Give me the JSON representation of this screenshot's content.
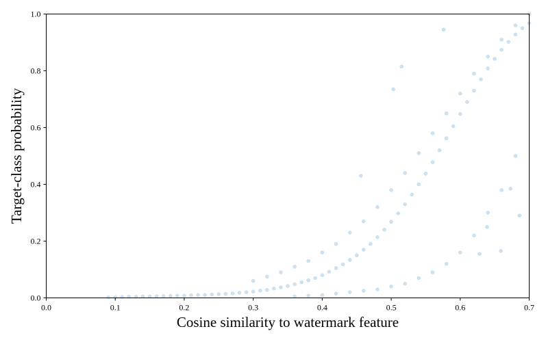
{
  "chart_data": {
    "type": "scatter",
    "title": "",
    "xlabel": "Cosine similarity to watermark feature",
    "ylabel": "Target-class probability",
    "xlim": [
      0.0,
      0.7
    ],
    "ylim": [
      0.0,
      1.0
    ],
    "xticks": [
      0.0,
      0.1,
      0.2,
      0.3,
      0.4,
      0.5,
      0.6,
      0.7
    ],
    "yticks": [
      0.0,
      0.2,
      0.4,
      0.6,
      0.8,
      1.0
    ],
    "xtick_labels": [
      "0.0",
      "0.1",
      "0.2",
      "0.3",
      "0.4",
      "0.5",
      "0.6",
      "0.7"
    ],
    "ytick_labels": [
      "0.0",
      "0.2",
      "0.4",
      "0.6",
      "0.8",
      "1.0"
    ],
    "grid": false,
    "legend": "none",
    "marker_color": "#1f77b4",
    "marker_alpha": 0.22,
    "series": [
      {
        "points": [
          [
            0.09,
            0.002
          ],
          [
            0.1,
            0.003
          ],
          [
            0.11,
            0.003
          ],
          [
            0.12,
            0.004
          ],
          [
            0.13,
            0.004
          ],
          [
            0.14,
            0.005
          ],
          [
            0.15,
            0.005
          ],
          [
            0.16,
            0.006
          ],
          [
            0.17,
            0.006
          ],
          [
            0.18,
            0.007
          ],
          [
            0.19,
            0.008
          ],
          [
            0.2,
            0.008
          ],
          [
            0.21,
            0.009
          ],
          [
            0.22,
            0.01
          ],
          [
            0.23,
            0.01
          ],
          [
            0.24,
            0.012
          ],
          [
            0.25,
            0.013
          ],
          [
            0.26,
            0.014
          ],
          [
            0.27,
            0.016
          ],
          [
            0.28,
            0.018
          ],
          [
            0.29,
            0.02
          ],
          [
            0.3,
            0.022
          ],
          [
            0.31,
            0.026
          ],
          [
            0.32,
            0.028
          ],
          [
            0.33,
            0.033
          ],
          [
            0.34,
            0.037
          ],
          [
            0.35,
            0.042
          ],
          [
            0.36,
            0.048
          ],
          [
            0.37,
            0.055
          ],
          [
            0.38,
            0.062
          ],
          [
            0.39,
            0.07
          ],
          [
            0.4,
            0.08
          ],
          [
            0.41,
            0.092
          ],
          [
            0.42,
            0.105
          ],
          [
            0.43,
            0.118
          ],
          [
            0.44,
            0.134
          ],
          [
            0.45,
            0.15
          ],
          [
            0.46,
            0.17
          ],
          [
            0.47,
            0.19
          ],
          [
            0.48,
            0.214
          ],
          [
            0.49,
            0.24
          ],
          [
            0.5,
            0.268
          ],
          [
            0.51,
            0.298
          ],
          [
            0.52,
            0.33
          ],
          [
            0.53,
            0.364
          ],
          [
            0.54,
            0.4
          ],
          [
            0.55,
            0.438
          ],
          [
            0.56,
            0.478
          ],
          [
            0.57,
            0.52
          ],
          [
            0.58,
            0.562
          ],
          [
            0.59,
            0.605
          ],
          [
            0.6,
            0.648
          ],
          [
            0.61,
            0.69
          ],
          [
            0.62,
            0.73
          ],
          [
            0.63,
            0.77
          ],
          [
            0.64,
            0.808
          ],
          [
            0.65,
            0.842
          ],
          [
            0.66,
            0.874
          ],
          [
            0.67,
            0.902
          ],
          [
            0.68,
            0.928
          ],
          [
            0.69,
            0.95
          ],
          [
            0.7,
            0.968
          ],
          [
            0.3,
            0.06
          ],
          [
            0.32,
            0.075
          ],
          [
            0.34,
            0.09
          ],
          [
            0.36,
            0.11
          ],
          [
            0.38,
            0.13
          ],
          [
            0.4,
            0.16
          ],
          [
            0.42,
            0.19
          ],
          [
            0.44,
            0.23
          ],
          [
            0.46,
            0.27
          ],
          [
            0.48,
            0.32
          ],
          [
            0.5,
            0.38
          ],
          [
            0.52,
            0.44
          ],
          [
            0.54,
            0.51
          ],
          [
            0.56,
            0.58
          ],
          [
            0.58,
            0.65
          ],
          [
            0.6,
            0.72
          ],
          [
            0.62,
            0.79
          ],
          [
            0.64,
            0.85
          ],
          [
            0.66,
            0.91
          ],
          [
            0.68,
            0.96
          ],
          [
            0.7,
            1.0
          ],
          [
            0.36,
            0.005
          ],
          [
            0.38,
            0.008
          ],
          [
            0.4,
            0.01
          ],
          [
            0.42,
            0.015
          ],
          [
            0.44,
            0.02
          ],
          [
            0.46,
            0.025
          ],
          [
            0.48,
            0.03
          ],
          [
            0.5,
            0.04
          ],
          [
            0.52,
            0.05
          ],
          [
            0.54,
            0.07
          ],
          [
            0.56,
            0.09
          ],
          [
            0.58,
            0.12
          ],
          [
            0.6,
            0.16
          ],
          [
            0.62,
            0.22
          ],
          [
            0.64,
            0.3
          ],
          [
            0.66,
            0.38
          ],
          [
            0.68,
            0.5
          ],
          [
            0.456,
            0.43
          ],
          [
            0.503,
            0.735
          ],
          [
            0.515,
            0.815
          ],
          [
            0.576,
            0.945
          ],
          [
            0.673,
            0.385
          ],
          [
            0.686,
            0.29
          ],
          [
            0.639,
            0.25
          ],
          [
            0.628,
            0.155
          ],
          [
            0.659,
            0.165
          ]
        ]
      }
    ]
  }
}
